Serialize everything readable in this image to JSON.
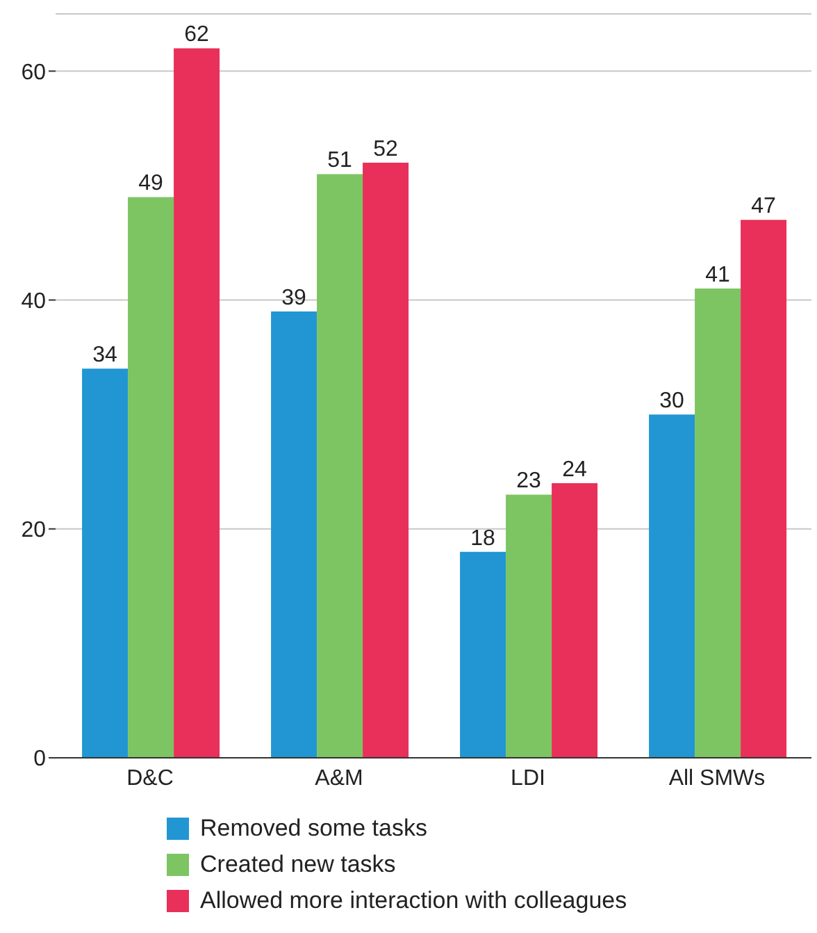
{
  "chart_data": {
    "type": "bar",
    "categories": [
      "D&C",
      "A&M",
      "LDI",
      "All SMWs"
    ],
    "series": [
      {
        "name": "Removed some tasks",
        "color": "#2196d3",
        "values": [
          34,
          39,
          18,
          30
        ]
      },
      {
        "name": "Created new tasks",
        "color": "#7dc462",
        "values": [
          49,
          51,
          23,
          41
        ]
      },
      {
        "name": "Allowed more interaction with colleagues",
        "color": "#e8305a",
        "values": [
          62,
          52,
          24,
          47
        ]
      }
    ],
    "ylim": [
      0,
      65
    ],
    "yticks": [
      0,
      20,
      40,
      60
    ],
    "grid": "y",
    "legend": "bottom",
    "data_labels": true
  }
}
